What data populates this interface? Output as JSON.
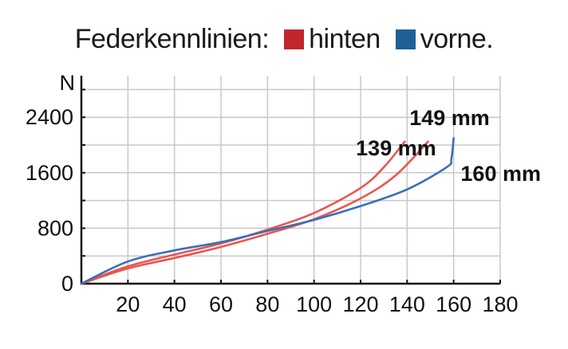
{
  "chart_data": {
    "type": "line",
    "title": "Federkennlinien:",
    "xlabel": "",
    "ylabel": "N",
    "xlim": [
      0,
      180
    ],
    "ylim": [
      0,
      3000
    ],
    "x_ticks": [
      20,
      40,
      60,
      80,
      100,
      120,
      140,
      160,
      180
    ],
    "y_ticks": [
      0,
      800,
      1600,
      2400
    ],
    "grid": true,
    "legend": [
      {
        "label": "hinten",
        "color": "#c0272d"
      },
      {
        "label": "vorne.",
        "color": "#1f5f97"
      }
    ],
    "series": [
      {
        "name": "hinten 139 mm",
        "group": "hinten",
        "color": "#e8564f",
        "x": [
          0,
          20,
          40,
          60,
          80,
          100,
          120,
          130,
          139
        ],
        "y": [
          0,
          250,
          420,
          580,
          780,
          1020,
          1380,
          1680,
          2050
        ]
      },
      {
        "name": "hinten 149 mm",
        "group": "hinten",
        "color": "#e8564f",
        "x": [
          0,
          20,
          40,
          60,
          80,
          100,
          120,
          135,
          149
        ],
        "y": [
          0,
          220,
          370,
          530,
          720,
          930,
          1230,
          1560,
          2050
        ]
      },
      {
        "name": "vorne 160 mm",
        "group": "vorne",
        "color": "#3a6fb8",
        "x": [
          0,
          20,
          40,
          60,
          80,
          100,
          120,
          140,
          157,
          159,
          160
        ],
        "y": [
          0,
          320,
          480,
          600,
          760,
          920,
          1120,
          1360,
          1680,
          1800,
          2100
        ]
      }
    ],
    "annotations": [
      {
        "text": "139 mm",
        "x": 118,
        "y": 1850
      },
      {
        "text": "149 mm",
        "x": 141,
        "y": 2290
      },
      {
        "text": "160 mm",
        "x": 163,
        "y": 1480
      }
    ]
  }
}
